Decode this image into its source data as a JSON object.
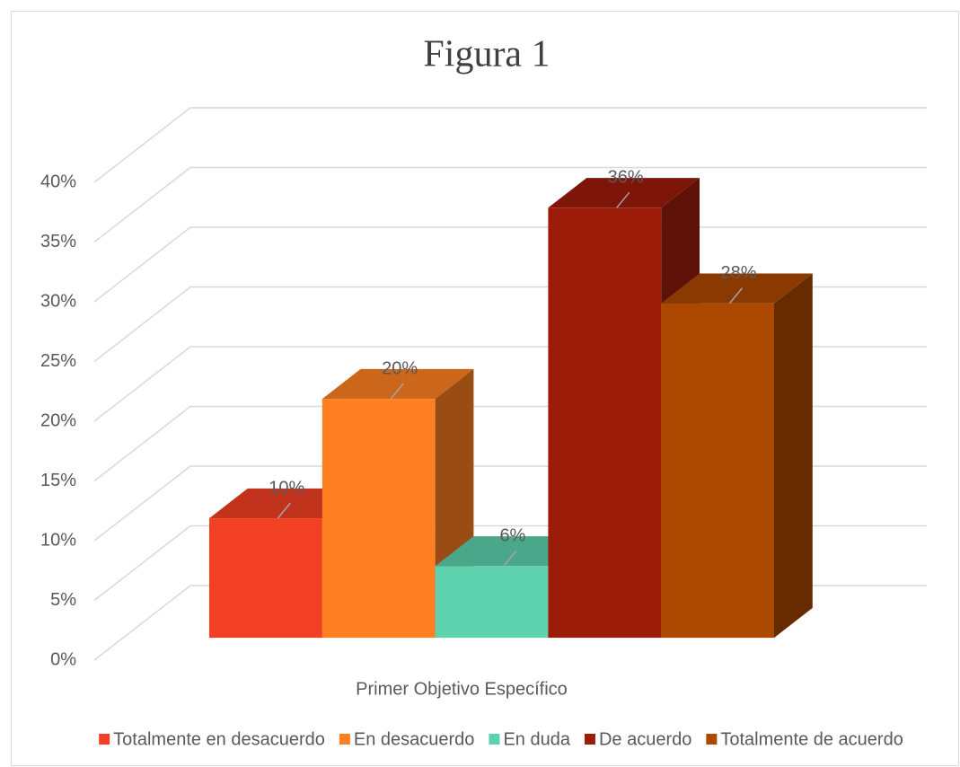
{
  "chart_data": {
    "type": "bar3d",
    "title": "Figura 1",
    "categories": [
      "Primer Objetivo Específico"
    ],
    "series": [
      {
        "name": "Totalmente en desacuerdo",
        "color": "#f24024",
        "values": [
          10
        ],
        "value_labels": [
          "10%"
        ]
      },
      {
        "name": "En desacuerdo",
        "color": "#ff8022",
        "values": [
          20
        ],
        "value_labels": [
          "20%"
        ]
      },
      {
        "name": "En duda",
        "color": "#5ed1ad",
        "values": [
          6
        ],
        "value_labels": [
          "6%"
        ]
      },
      {
        "name": "De acuerdo",
        "color": "#9c1c0a",
        "values": [
          36
        ],
        "value_labels": [
          "36%"
        ]
      },
      {
        "name": "Totalmente de acuerdo",
        "color": "#ac4800",
        "values": [
          28
        ],
        "value_labels": [
          "28%"
        ]
      }
    ],
    "ylim": [
      0,
      40
    ],
    "yticks": [
      {
        "value": 0,
        "label": "0%"
      },
      {
        "value": 5,
        "label": "5%"
      },
      {
        "value": 10,
        "label": "10%"
      },
      {
        "value": 15,
        "label": "15%"
      },
      {
        "value": 20,
        "label": "20%"
      },
      {
        "value": 25,
        "label": "25%"
      },
      {
        "value": 30,
        "label": "30%"
      },
      {
        "value": 35,
        "label": "35%"
      },
      {
        "value": 40,
        "label": "40%"
      }
    ],
    "grid": true,
    "legend": "bottom"
  }
}
